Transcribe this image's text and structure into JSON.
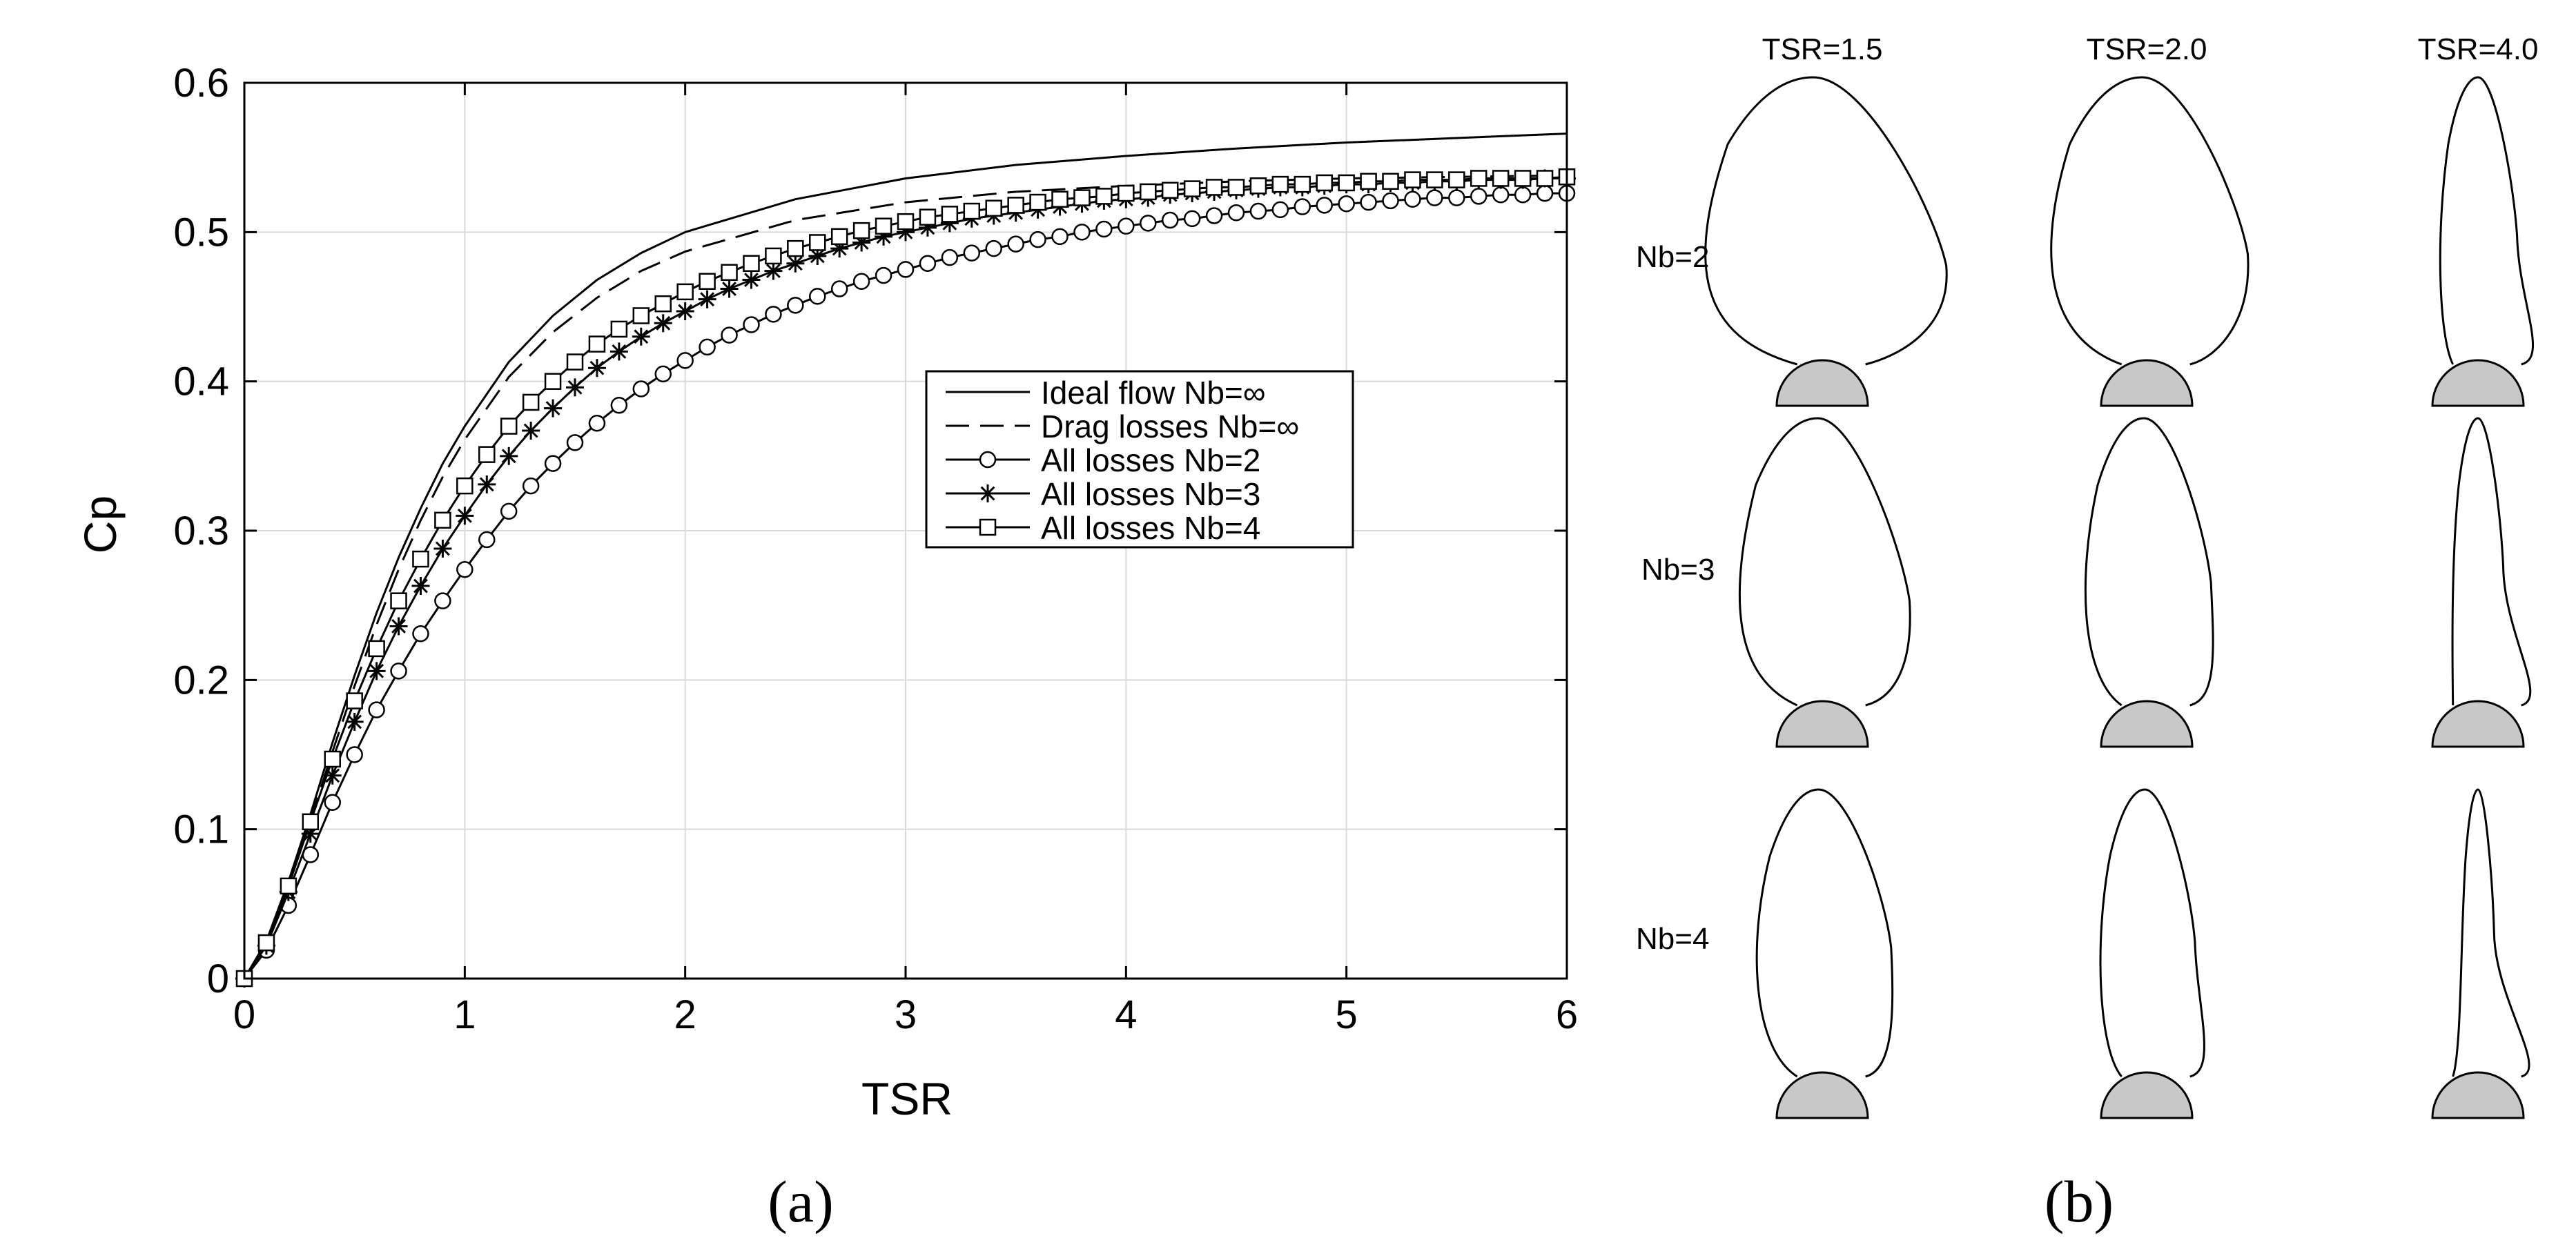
{
  "panel_labels": {
    "a": "(a)",
    "b": "(b)"
  },
  "colors": {
    "line": "#000000",
    "grid": "#d9d9d9",
    "hub_fill": "#c8c8c8",
    "background": "#ffffff"
  },
  "chart_data": [
    {
      "type": "line",
      "xlabel": "TSR",
      "ylabel": "Cp",
      "xlim": [
        0,
        6
      ],
      "ylim": [
        0,
        0.6
      ],
      "xticks": [
        0,
        1,
        2,
        3,
        4,
        5,
        6
      ],
      "xtick_labels": [
        "0",
        "1",
        "2",
        "3",
        "4",
        "5",
        "6"
      ],
      "yticks": [
        0,
        0.1,
        0.2,
        0.3,
        0.4,
        0.5,
        0.6
      ],
      "ytick_labels": [
        "0",
        "0.1",
        "0.2",
        "0.3",
        "0.4",
        "0.5",
        "0.6"
      ],
      "grid": true,
      "legend_position": "center-right",
      "series": [
        {
          "name": "Ideal flow Nb=∞",
          "line": "solid",
          "marker": "none",
          "x": [
            0,
            0.1,
            0.2,
            0.3,
            0.4,
            0.5,
            0.6,
            0.7,
            0.8,
            0.9,
            1.0,
            1.2,
            1.4,
            1.6,
            1.8,
            2.0,
            2.5,
            3.0,
            3.5,
            4.0,
            4.5,
            5.0,
            5.5,
            6.0
          ],
          "y": [
            0,
            0.025,
            0.065,
            0.11,
            0.158,
            0.203,
            0.245,
            0.282,
            0.315,
            0.345,
            0.37,
            0.413,
            0.444,
            0.468,
            0.486,
            0.5,
            0.522,
            0.536,
            0.545,
            0.551,
            0.556,
            0.56,
            0.563,
            0.566
          ]
        },
        {
          "name": "Drag losses Nb=∞",
          "line": "dashed",
          "marker": "none",
          "x": [
            0,
            0.1,
            0.2,
            0.3,
            0.4,
            0.5,
            0.6,
            0.7,
            0.8,
            0.9,
            1.0,
            1.2,
            1.4,
            1.6,
            1.8,
            2.0,
            2.5,
            3.0,
            3.5,
            4.0,
            4.5,
            5.0,
            5.5,
            6.0
          ],
          "y": [
            0,
            0.024,
            0.062,
            0.106,
            0.152,
            0.196,
            0.237,
            0.274,
            0.307,
            0.336,
            0.361,
            0.403,
            0.433,
            0.456,
            0.474,
            0.487,
            0.508,
            0.52,
            0.527,
            0.531,
            0.534,
            0.536,
            0.537,
            0.538
          ]
        },
        {
          "name": "All losses Nb=2",
          "line": "solid",
          "marker": "circle",
          "x": [
            0,
            0.1,
            0.2,
            0.3,
            0.4,
            0.5,
            0.6,
            0.7,
            0.8,
            0.9,
            1.0,
            1.1,
            1.2,
            1.3,
            1.4,
            1.5,
            1.6,
            1.7,
            1.8,
            1.9,
            2.0,
            2.1,
            2.2,
            2.3,
            2.4,
            2.5,
            2.6,
            2.7,
            2.8,
            2.9,
            3.0,
            3.1,
            3.2,
            3.3,
            3.4,
            3.5,
            3.6,
            3.7,
            3.8,
            3.9,
            4.0,
            4.1,
            4.2,
            4.3,
            4.4,
            4.5,
            4.6,
            4.7,
            4.8,
            4.9,
            5.0,
            5.1,
            5.2,
            5.3,
            5.4,
            5.5,
            5.6,
            5.7,
            5.8,
            5.9,
            6.0
          ],
          "y": [
            0,
            0.019,
            0.049,
            0.083,
            0.118,
            0.15,
            0.18,
            0.206,
            0.231,
            0.253,
            0.274,
            0.294,
            0.313,
            0.33,
            0.345,
            0.359,
            0.372,
            0.384,
            0.395,
            0.405,
            0.414,
            0.423,
            0.431,
            0.438,
            0.445,
            0.451,
            0.457,
            0.462,
            0.467,
            0.471,
            0.475,
            0.479,
            0.483,
            0.486,
            0.489,
            0.492,
            0.495,
            0.497,
            0.5,
            0.502,
            0.504,
            0.506,
            0.508,
            0.509,
            0.511,
            0.513,
            0.514,
            0.515,
            0.517,
            0.518,
            0.519,
            0.52,
            0.521,
            0.522,
            0.523,
            0.523,
            0.524,
            0.525,
            0.525,
            0.526,
            0.526
          ]
        },
        {
          "name": "All losses Nb=3",
          "line": "solid",
          "marker": "asterisk",
          "x": [
            0,
            0.1,
            0.2,
            0.3,
            0.4,
            0.5,
            0.6,
            0.7,
            0.8,
            0.9,
            1.0,
            1.1,
            1.2,
            1.3,
            1.4,
            1.5,
            1.6,
            1.7,
            1.8,
            1.9,
            2.0,
            2.1,
            2.2,
            2.3,
            2.4,
            2.5,
            2.6,
            2.7,
            2.8,
            2.9,
            3.0,
            3.1,
            3.2,
            3.3,
            3.4,
            3.5,
            3.6,
            3.7,
            3.8,
            3.9,
            4.0,
            4.1,
            4.2,
            4.3,
            4.4,
            4.5,
            4.6,
            4.7,
            4.8,
            4.9,
            5.0,
            5.1,
            5.2,
            5.3,
            5.4,
            5.5,
            5.6,
            5.7,
            5.8,
            5.9,
            6.0
          ],
          "y": [
            0,
            0.022,
            0.058,
            0.097,
            0.136,
            0.172,
            0.206,
            0.236,
            0.263,
            0.288,
            0.31,
            0.331,
            0.35,
            0.367,
            0.382,
            0.396,
            0.409,
            0.42,
            0.43,
            0.439,
            0.447,
            0.455,
            0.462,
            0.468,
            0.474,
            0.479,
            0.484,
            0.489,
            0.493,
            0.497,
            0.5,
            0.503,
            0.506,
            0.509,
            0.511,
            0.513,
            0.515,
            0.517,
            0.519,
            0.521,
            0.522,
            0.523,
            0.525,
            0.526,
            0.527,
            0.528,
            0.529,
            0.53,
            0.53,
            0.531,
            0.532,
            0.532,
            0.533,
            0.533,
            0.534,
            0.534,
            0.535,
            0.535,
            0.535,
            0.536,
            0.536
          ]
        },
        {
          "name": "All losses Nb=4",
          "line": "solid",
          "marker": "square",
          "x": [
            0,
            0.1,
            0.2,
            0.3,
            0.4,
            0.5,
            0.6,
            0.7,
            0.8,
            0.9,
            1.0,
            1.1,
            1.2,
            1.3,
            1.4,
            1.5,
            1.6,
            1.7,
            1.8,
            1.9,
            2.0,
            2.1,
            2.2,
            2.3,
            2.4,
            2.5,
            2.6,
            2.7,
            2.8,
            2.9,
            3.0,
            3.1,
            3.2,
            3.3,
            3.4,
            3.5,
            3.6,
            3.7,
            3.8,
            3.9,
            4.0,
            4.1,
            4.2,
            4.3,
            4.4,
            4.5,
            4.6,
            4.7,
            4.8,
            4.9,
            5.0,
            5.1,
            5.2,
            5.3,
            5.4,
            5.5,
            5.6,
            5.7,
            5.8,
            5.9,
            6.0
          ],
          "y": [
            0,
            0.024,
            0.062,
            0.105,
            0.147,
            0.186,
            0.221,
            0.253,
            0.281,
            0.307,
            0.33,
            0.351,
            0.37,
            0.386,
            0.4,
            0.413,
            0.425,
            0.435,
            0.444,
            0.452,
            0.46,
            0.467,
            0.473,
            0.479,
            0.484,
            0.489,
            0.493,
            0.497,
            0.501,
            0.504,
            0.507,
            0.51,
            0.512,
            0.514,
            0.516,
            0.518,
            0.52,
            0.522,
            0.523,
            0.524,
            0.526,
            0.527,
            0.528,
            0.529,
            0.53,
            0.53,
            0.531,
            0.532,
            0.532,
            0.533,
            0.533,
            0.534,
            0.534,
            0.535,
            0.535,
            0.535,
            0.536,
            0.536,
            0.536,
            0.536,
            0.537
          ]
        }
      ]
    },
    {
      "type": "other",
      "columns": [
        "TSR=1.5",
        "TSR=2.0",
        "TSR=4.0"
      ],
      "rows": [
        "Nb=2",
        "Nb=3",
        "Nb=4"
      ],
      "shapes": [
        [
          {
            "half_width": 0.54,
            "height": 1.0,
            "tilt": 0.2,
            "lean": 0.1
          },
          {
            "half_width": 0.44,
            "height": 1.0,
            "tilt": 0.16,
            "lean": 0.05
          },
          {
            "half_width": 0.17,
            "height": 1.0,
            "tilt": 0.1,
            "lean": 0.0
          }
        ],
        [
          {
            "half_width": 0.38,
            "height": 1.0,
            "tilt": 0.18,
            "lean": 0.05
          },
          {
            "half_width": 0.28,
            "height": 1.0,
            "tilt": 0.12,
            "lean": 0.03
          },
          {
            "half_width": 0.11,
            "height": 1.0,
            "tilt": 0.07,
            "lean": 0.0
          }
        ],
        [
          {
            "half_width": 0.3,
            "height": 1.0,
            "tilt": 0.1,
            "lean": 0.04
          },
          {
            "half_width": 0.21,
            "height": 1.0,
            "tilt": 0.08,
            "lean": 0.02
          },
          {
            "half_width": 0.07,
            "height": 1.0,
            "tilt": 0.05,
            "lean": 0.0
          }
        ]
      ]
    }
  ]
}
